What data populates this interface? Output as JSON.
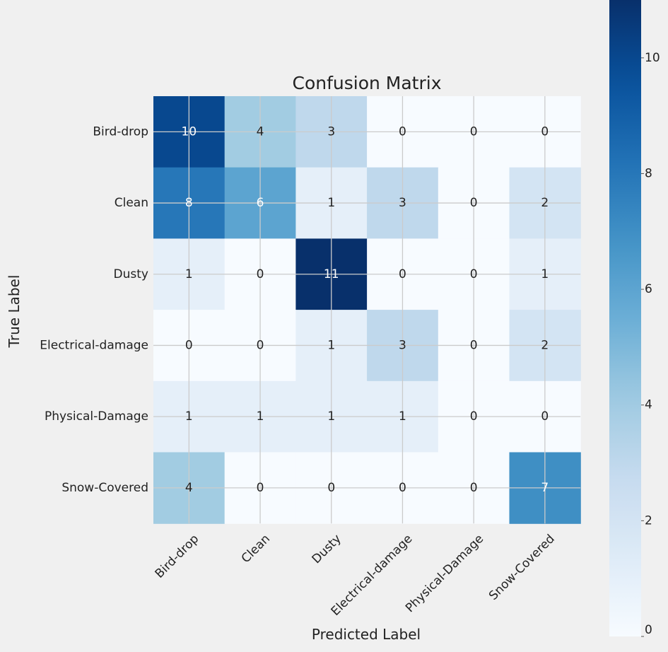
{
  "chart_data": {
    "type": "heatmap",
    "title": "Confusion Matrix",
    "xlabel": "Predicted Label",
    "ylabel": "True Label",
    "x_categories": [
      "Bird-drop",
      "Clean",
      "Dusty",
      "Electrical-damage",
      "Physical-Damage",
      "Snow-Covered"
    ],
    "y_categories": [
      "Bird-drop",
      "Clean",
      "Dusty",
      "Electrical-damage",
      "Physical-Damage",
      "Snow-Covered"
    ],
    "values": [
      [
        10,
        4,
        3,
        0,
        0,
        0
      ],
      [
        8,
        6,
        1,
        3,
        0,
        2
      ],
      [
        1,
        0,
        11,
        0,
        0,
        1
      ],
      [
        0,
        0,
        1,
        3,
        0,
        2
      ],
      [
        1,
        1,
        1,
        1,
        0,
        0
      ],
      [
        4,
        0,
        0,
        0,
        0,
        7
      ]
    ],
    "colormap": "Blues",
    "vmin": 0,
    "vmax": 11,
    "colorbar_ticks": [
      0,
      2,
      4,
      6,
      8,
      10
    ],
    "grid": true
  }
}
